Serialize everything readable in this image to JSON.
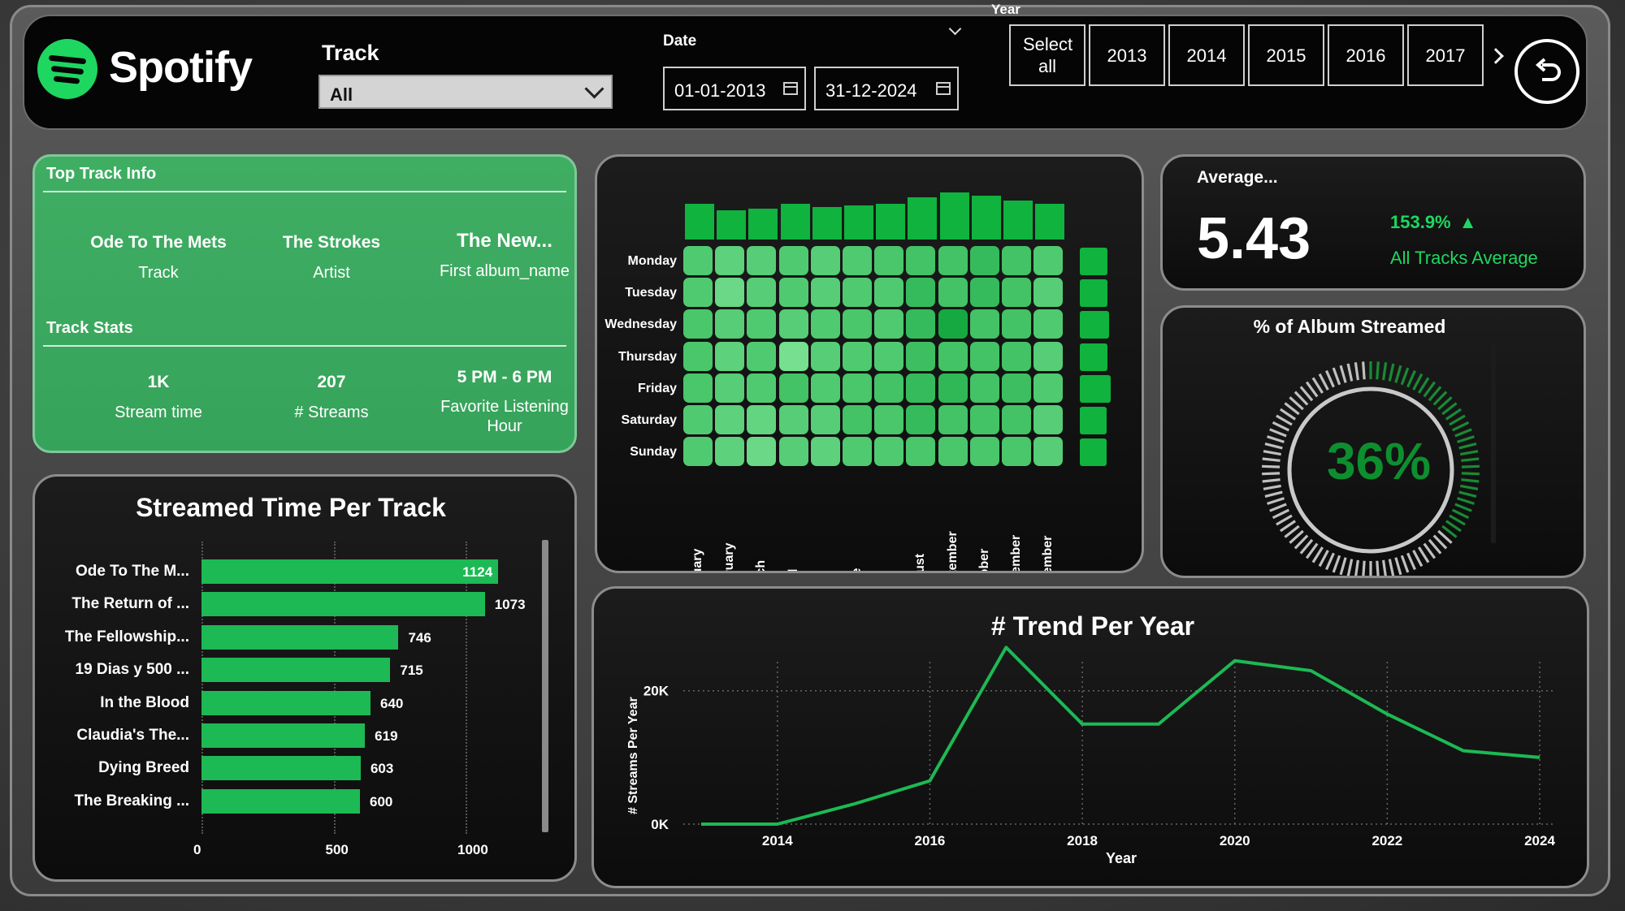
{
  "header": {
    "app_name": "Spotify",
    "track_filter": {
      "label": "Track",
      "value": "All"
    },
    "date_filter": {
      "label": "Date",
      "start": "01-01-2013",
      "end": "31-12-2024"
    },
    "year_filter": {
      "label": "Year",
      "select_all": "Select all",
      "years": [
        "2013",
        "2014",
        "2015",
        "2016",
        "2017"
      ]
    },
    "icons": {
      "reset": "reset-icon",
      "next": "chevron-right-icon",
      "calendar": "calendar-icon"
    }
  },
  "top_track": {
    "section_title": "Top Track Info",
    "track": {
      "value": "Ode To The Mets",
      "label": "Track"
    },
    "artist": {
      "value": "The Strokes",
      "label": "Artist"
    },
    "album": {
      "value": "The New...",
      "label": "First album_name"
    },
    "stats_title": "Track Stats",
    "stream_time": {
      "value": "1K",
      "label": "Stream time"
    },
    "streams": {
      "value": "207",
      "label": "# Streams"
    },
    "fav_hour": {
      "value": "5 PM - 6 PM",
      "label": "Favorite Listening Hour"
    }
  },
  "average_card": {
    "title": "Average...",
    "value": "5.43",
    "delta": "153.9%",
    "delta_direction": "up",
    "caption": "All Tracks Average"
  },
  "album_card": {
    "title": "% of Album Streamed",
    "value_label": "36%",
    "percent": 36
  },
  "colors": {
    "accent": "#1db954",
    "bright": "#1ed760",
    "panel": "#111111"
  },
  "chart_data": [
    {
      "type": "bar",
      "orientation": "horizontal",
      "title": "Streamed Time Per Track",
      "categories": [
        "Ode To The M...",
        "The Return of ...",
        "The Fellowship...",
        "19 Dias y 500 ...",
        "In the Blood",
        "Claudia's The...",
        "Dying Breed",
        "The Breaking ..."
      ],
      "values": [
        1124,
        1073,
        746,
        715,
        640,
        619,
        603,
        600
      ],
      "value_labels": [
        "1124",
        "1073",
        "746",
        "715",
        "640",
        "619",
        "603",
        "600"
      ],
      "xlim": [
        0,
        1250
      ],
      "xticks": [
        "0",
        "500",
        "1000"
      ],
      "xtick_values": [
        0,
        500,
        1000
      ],
      "grid": true
    },
    {
      "type": "heatmap",
      "rows": [
        "Monday",
        "Tuesday",
        "Wednesday",
        "Thursday",
        "Friday",
        "Saturday",
        "Sunday"
      ],
      "columns": [
        "January",
        "February",
        "March",
        "April",
        "May",
        "June",
        "July",
        "August",
        "September",
        "October",
        "November",
        "December"
      ],
      "intensity": [
        [
          0.5,
          0.4,
          0.45,
          0.5,
          0.45,
          0.5,
          0.55,
          0.6,
          0.6,
          0.7,
          0.6,
          0.5
        ],
        [
          0.5,
          0.3,
          0.45,
          0.5,
          0.45,
          0.5,
          0.5,
          0.7,
          0.6,
          0.7,
          0.6,
          0.45
        ],
        [
          0.55,
          0.45,
          0.5,
          0.45,
          0.5,
          0.55,
          0.5,
          0.7,
          0.95,
          0.6,
          0.6,
          0.5
        ],
        [
          0.55,
          0.4,
          0.5,
          0.2,
          0.45,
          0.5,
          0.5,
          0.65,
          0.6,
          0.6,
          0.6,
          0.45
        ],
        [
          0.55,
          0.45,
          0.5,
          0.6,
          0.5,
          0.55,
          0.6,
          0.7,
          0.75,
          0.6,
          0.65,
          0.5
        ],
        [
          0.5,
          0.4,
          0.35,
          0.45,
          0.45,
          0.6,
          0.55,
          0.7,
          0.6,
          0.6,
          0.6,
          0.45
        ],
        [
          0.5,
          0.4,
          0.3,
          0.45,
          0.4,
          0.5,
          0.5,
          0.55,
          0.55,
          0.55,
          0.55,
          0.45
        ]
      ],
      "column_totals": [
        0.6,
        0.4,
        0.45,
        0.6,
        0.5,
        0.55,
        0.6,
        0.8,
        0.95,
        0.85,
        0.7,
        0.6
      ],
      "row_totals": [
        0.75,
        0.75,
        0.85,
        0.75,
        1.0,
        0.7,
        0.7
      ]
    },
    {
      "type": "line",
      "title": "# Trend Per Year",
      "xlabel": "Year",
      "ylabel": "# Streams Per Year",
      "x": [
        2013,
        2014,
        2015,
        2016,
        2017,
        2018,
        2019,
        2020,
        2021,
        2022,
        2023,
        2024
      ],
      "y": [
        0,
        0,
        3000,
        6500,
        26500,
        15000,
        15000,
        24500,
        23000,
        16500,
        11000,
        10000
      ],
      "xlim": [
        2012.5,
        2024.5
      ],
      "ylim": [
        0,
        28000
      ],
      "xticks": [
        "2014",
        "2016",
        "2018",
        "2020",
        "2022",
        "2024"
      ],
      "xtick_values": [
        2014,
        2016,
        2018,
        2020,
        2022,
        2024
      ],
      "yticks": [
        "0K",
        "20K"
      ],
      "ytick_values": [
        0,
        20000
      ],
      "grid": true
    }
  ]
}
